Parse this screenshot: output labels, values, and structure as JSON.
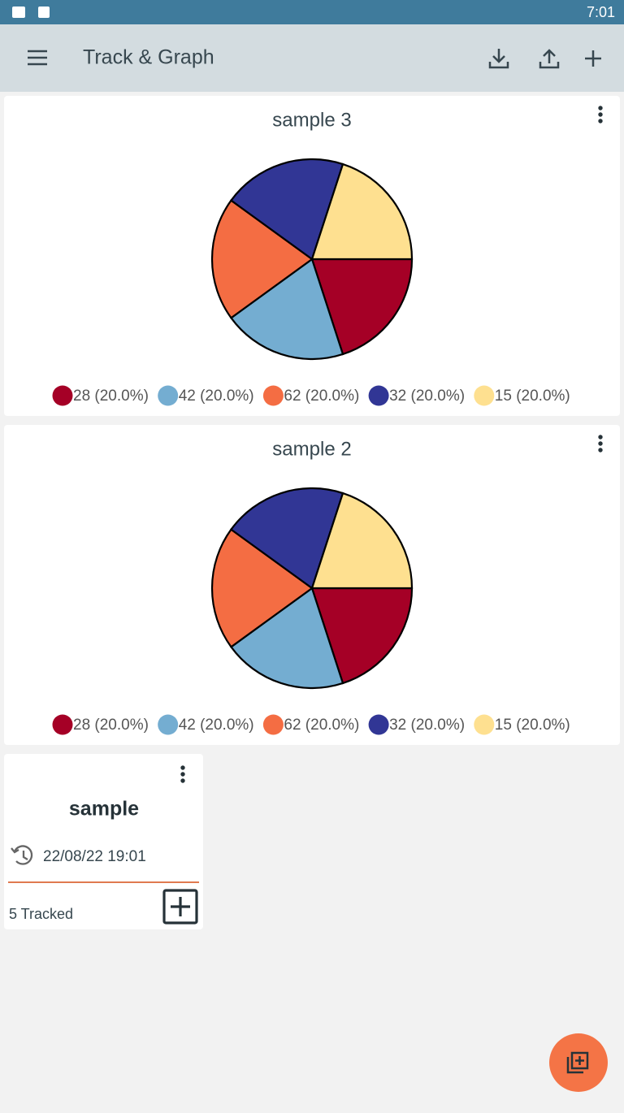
{
  "status_bar": {
    "time": "7:01"
  },
  "app_bar": {
    "title": "Track & Graph"
  },
  "chart_data": [
    {
      "type": "pie",
      "title": "sample 3",
      "categories": [
        "28 (20.0%)",
        "42 (20.0%)",
        "62 (20.0%)",
        "32 (20.0%)",
        "15 (20.0%)"
      ],
      "values": [
        20,
        20,
        20,
        20,
        20
      ],
      "colors": [
        "#a50026",
        "#74add1",
        "#f46d43",
        "#313695",
        "#fee090"
      ]
    },
    {
      "type": "pie",
      "title": "sample 2",
      "categories": [
        "28 (20.0%)",
        "42 (20.0%)",
        "62 (20.0%)",
        "32 (20.0%)",
        "15 (20.0%)"
      ],
      "values": [
        20,
        20,
        20,
        20,
        20
      ],
      "colors": [
        "#a50026",
        "#74add1",
        "#f46d43",
        "#313695",
        "#fee090"
      ]
    }
  ],
  "tracker": {
    "name": "sample",
    "last_entry": "22/08/22  19:01",
    "count": "5 Tracked"
  }
}
